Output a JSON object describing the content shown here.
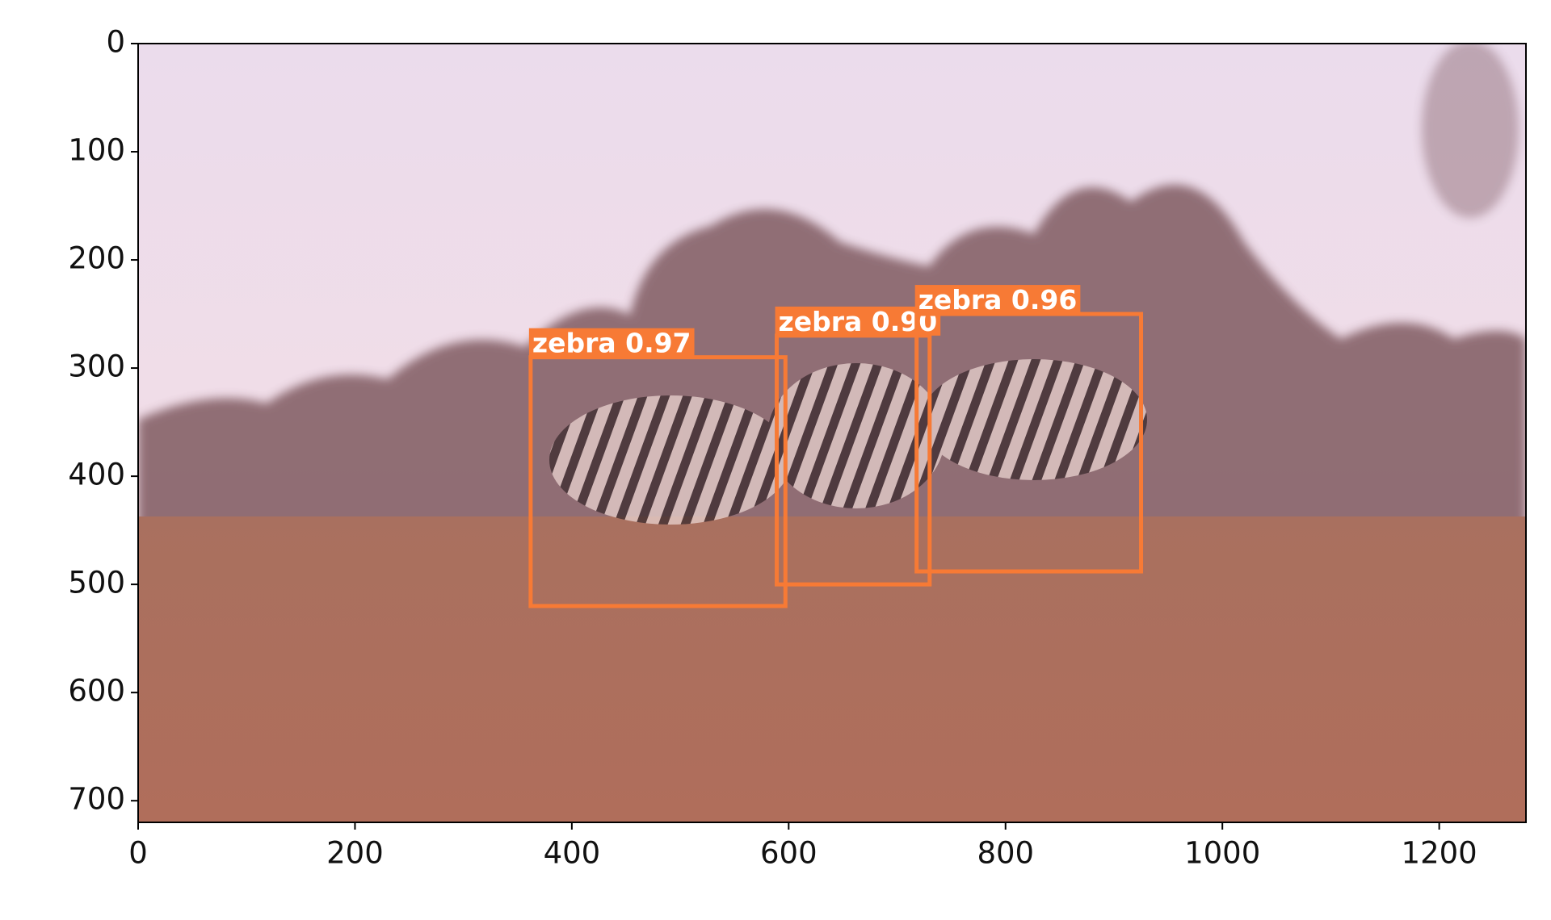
{
  "chart_data": {
    "type": "image",
    "xlim": [
      0,
      1280
    ],
    "ylim": [
      720,
      0
    ],
    "xticks": [
      0,
      200,
      400,
      600,
      800,
      1000,
      1200
    ],
    "yticks": [
      0,
      100,
      200,
      300,
      400,
      500,
      600,
      700
    ],
    "color": "#f77a35",
    "boxes": [
      {
        "label": "zebra 0.97",
        "x1": 362,
        "y1": 290,
        "x2": 597,
        "y2": 520
      },
      {
        "label": "zebra 0.90",
        "x1": 589,
        "y1": 270,
        "x2": 730,
        "y2": 500
      },
      {
        "label": "zebra 0.96",
        "x1": 718,
        "y1": 250,
        "x2": 925,
        "y2": 488
      }
    ]
  }
}
